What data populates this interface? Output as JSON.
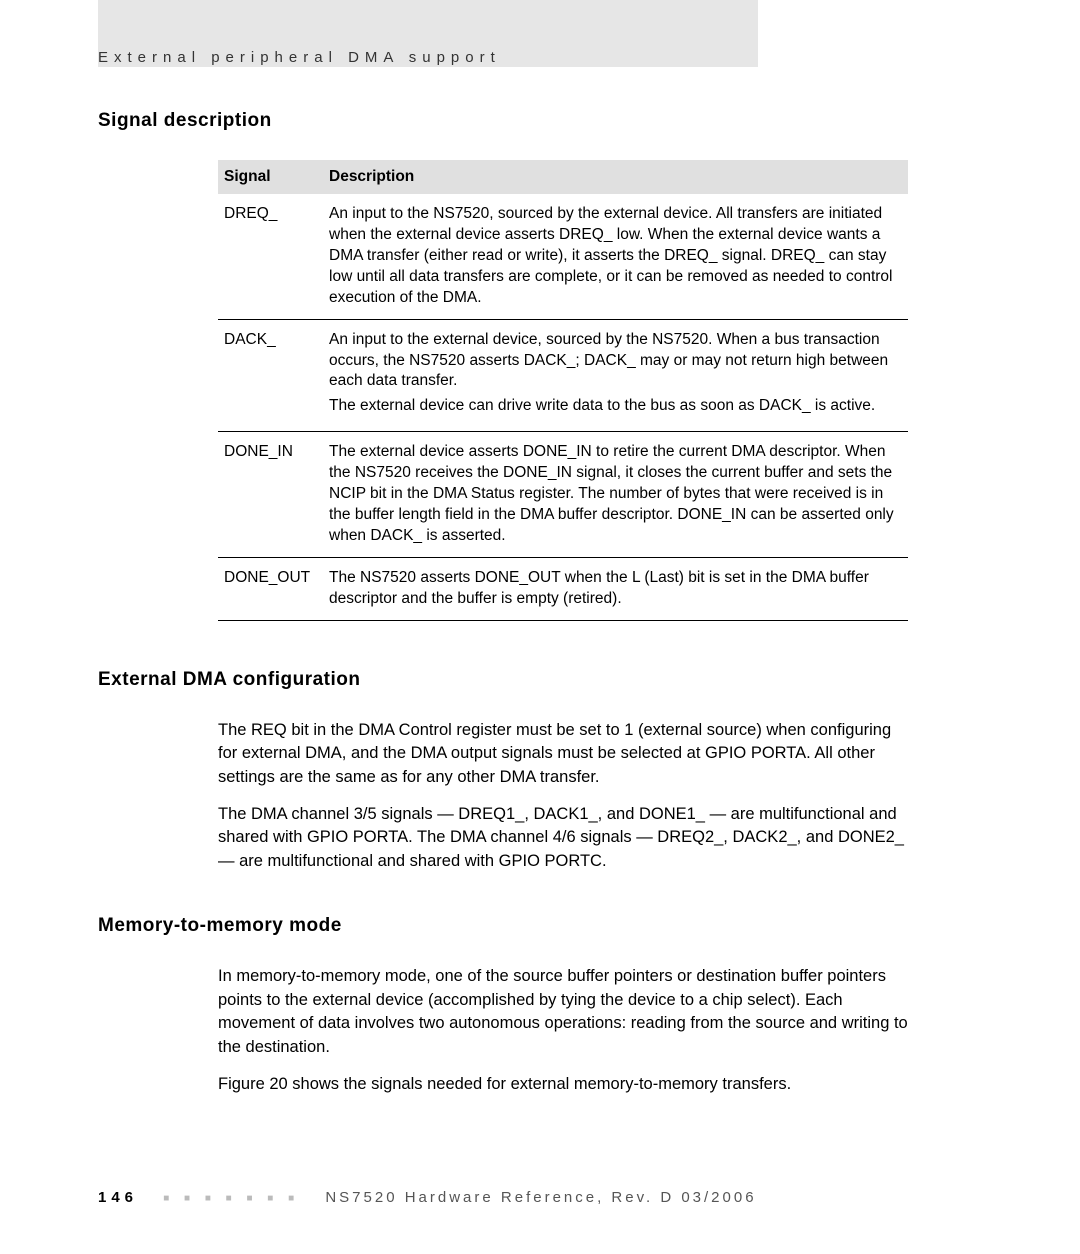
{
  "header": {
    "topic": "External peripheral DMA support"
  },
  "sections": {
    "signal": {
      "title": "Signal description",
      "table": {
        "columns": [
          "Signal",
          "Description"
        ],
        "rows": [
          {
            "signal": "DREQ_",
            "desc": "An input to the NS7520, sourced by the external device. All transfers are initiated when the external device asserts DREQ_ low. When the external device wants a DMA transfer (either read or write), it asserts the DREQ_ signal. DREQ_ can stay low until all data transfers are complete, or it can be removed as needed to control execution of the DMA."
          },
          {
            "signal": "DACK_",
            "desc1": "An input to the external device, sourced by the NS7520. When a bus transaction occurs, the NS7520 asserts DACK_; DACK_ may or may not return high between each data transfer.",
            "desc2": "The external device can drive write data to the bus as soon as DACK_ is active."
          },
          {
            "signal": "DONE_IN",
            "desc": "The external device asserts DONE_IN to retire the current DMA descriptor. When the NS7520 receives the DONE_IN signal, it closes the current buffer and sets the NCIP bit in the DMA Status register. The number of bytes that were received is in the buffer length field in the DMA buffer descriptor. DONE_IN can be asserted only when DACK_ is asserted."
          },
          {
            "signal": "DONE_OUT",
            "desc": "The NS7520 asserts DONE_OUT when the L (Last) bit is set in the DMA buffer descriptor and the buffer is empty (retired)."
          }
        ]
      }
    },
    "ext": {
      "title": "External DMA configuration",
      "p1": "The REQ bit in the DMA Control register must be set to 1 (external source) when configuring for external DMA, and the DMA output signals must be selected at GPIO PORTA. All other settings are the same as for any other DMA transfer.",
      "p2": "The DMA channel 3/5 signals — DREQ1_, DACK1_, and DONE1_ — are multifunctional and shared with GPIO PORTA. The DMA channel 4/6 signals — DREQ2_, DACK2_, and DONE2_ — are multifunctional and shared with GPIO PORTC."
    },
    "mem": {
      "title": "Memory-to-memory mode",
      "p1": "In memory-to-memory mode, one of the source buffer pointers or destination buffer pointers points to the external device (accomplished by tying the device to a chip select). Each movement of data involves two autonomous operations: reading from the source and writing to the destination.",
      "p2": "Figure 20 shows the signals needed for external memory-to-memory transfers."
    }
  },
  "footer": {
    "page": "146",
    "doc": "NS7520 Hardware Reference, Rev. D 03/2006"
  }
}
